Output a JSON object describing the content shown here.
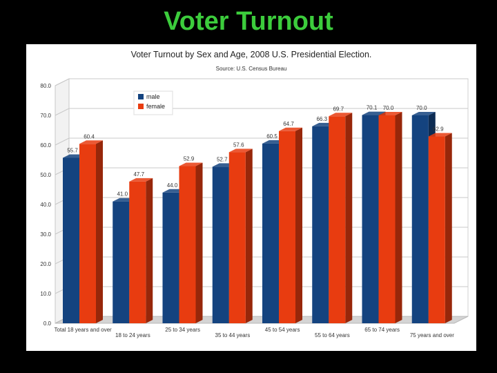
{
  "slide": {
    "title": "Voter Turnout"
  },
  "colors": {
    "male": "#14437f",
    "female": "#e83c10",
    "background": "#000000",
    "slide_title": "#3ccc3c"
  },
  "chart_data": {
    "type": "bar",
    "title": "Voter Turnout by Sex and Age, 2008 U.S. Presidential Election.",
    "subtitle": "Source: U.S. Census Bureau",
    "categories": [
      "Total 18 years and over",
      "18 to 24 years",
      "25 to 34 years",
      "35 to 44 years",
      "45 to 54 years",
      "55 to 64 years",
      "65 to 74 years",
      "75 years and over"
    ],
    "series": [
      {
        "name": "male",
        "values": [
          55.7,
          41.0,
          44.0,
          52.7,
          60.5,
          66.3,
          70.1,
          70.0
        ]
      },
      {
        "name": "female",
        "values": [
          60.4,
          47.7,
          52.9,
          57.6,
          64.7,
          69.7,
          70.0,
          62.9
        ]
      }
    ],
    "data_labels": {
      "male": [
        "55.7",
        "41.0",
        "44.0",
        "52.7",
        "60.5",
        "66.3",
        "70.1",
        "70.0"
      ],
      "female": [
        "60.4",
        "47.7",
        "52.9",
        "57.6",
        "64.7",
        "69.7",
        "70.0",
        "62.9"
      ]
    },
    "ylim": [
      0,
      80
    ],
    "yticks": [
      "0.0",
      "10.0",
      "20.0",
      "30.0",
      "40.0",
      "50.0",
      "60.0",
      "70.0",
      "80.0"
    ],
    "xlabel": "",
    "ylabel": "",
    "grid": true,
    "legend": "top-left",
    "style": "3d-bar"
  }
}
